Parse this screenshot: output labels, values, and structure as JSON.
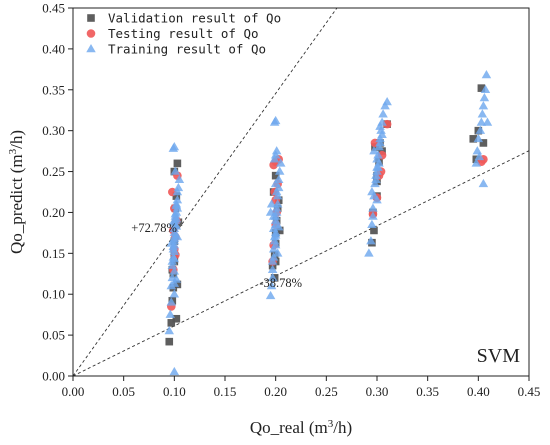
{
  "chart_data": {
    "type": "scatter",
    "xlabel": "Qo_real (m³/h)",
    "ylabel": "Qo_predict (m³/h)",
    "xlim": [
      0,
      0.45
    ],
    "ylim": [
      0,
      0.45
    ],
    "x_ticks": [
      "0.00",
      "0.05",
      "0.10",
      "0.15",
      "0.20",
      "0.25",
      "0.30",
      "0.35",
      "0.40",
      "0.45"
    ],
    "y_ticks": [
      "0.00",
      "0.05",
      "0.10",
      "0.15",
      "0.20",
      "0.25",
      "0.30",
      "0.35",
      "0.40",
      "0.45"
    ],
    "grid": false,
    "legend_position": "top-left",
    "annotations": [
      {
        "text": "+72.78%",
        "x": 0.08,
        "y": 0.176,
        "slope": 1.7278
      },
      {
        "text": "-38.78%",
        "x": 0.205,
        "y": 0.109,
        "slope": 0.6122
      }
    ],
    "model_label": "SVM",
    "series": [
      {
        "name": "Validation result of Qo",
        "marker": "square",
        "color": "#555555",
        "x": [
          0.095,
          0.097,
          0.098,
          0.099,
          0.1,
          0.1,
          0.101,
          0.101,
          0.102,
          0.103,
          0.1,
          0.099,
          0.103,
          0.098,
          0.104,
          0.1,
          0.102,
          0.197,
          0.199,
          0.2,
          0.2,
          0.201,
          0.202,
          0.203,
          0.198,
          0.2,
          0.204,
          0.2,
          0.199,
          0.295,
          0.297,
          0.3,
          0.3,
          0.302,
          0.305,
          0.298,
          0.303,
          0.31,
          0.296,
          0.3,
          0.395,
          0.4,
          0.403,
          0.405,
          0.398
        ],
        "y": [
          0.042,
          0.065,
          0.092,
          0.125,
          0.14,
          0.165,
          0.185,
          0.205,
          0.22,
          0.26,
          0.25,
          0.108,
          0.112,
          0.13,
          0.188,
          0.148,
          0.07,
          0.135,
          0.148,
          0.162,
          0.175,
          0.19,
          0.205,
          0.215,
          0.225,
          0.14,
          0.178,
          0.245,
          0.12,
          0.163,
          0.178,
          0.22,
          0.245,
          0.262,
          0.275,
          0.28,
          0.285,
          0.308,
          0.2,
          0.238,
          0.29,
          0.3,
          0.352,
          0.285,
          0.265
        ],
        "labels_x": [],
        "labels_y": []
      },
      {
        "name": "Testing result of Qo",
        "marker": "circle",
        "color": "#f05a5a",
        "x": [
          0.097,
          0.099,
          0.1,
          0.101,
          0.102,
          0.1,
          0.098,
          0.103,
          0.101,
          0.099,
          0.197,
          0.198,
          0.2,
          0.201,
          0.2,
          0.199,
          0.202,
          0.198,
          0.2,
          0.203,
          0.296,
          0.3,
          0.302,
          0.305,
          0.31,
          0.298,
          0.304,
          0.405,
          0.403
        ],
        "y": [
          0.085,
          0.13,
          0.155,
          0.17,
          0.19,
          0.205,
          0.225,
          0.245,
          0.148,
          0.178,
          0.14,
          0.16,
          0.185,
          0.2,
          0.215,
          0.225,
          0.235,
          0.258,
          0.262,
          0.265,
          0.198,
          0.218,
          0.245,
          0.27,
          0.308,
          0.285,
          0.25,
          0.265,
          0.262
        ]
      },
      {
        "name": "Training result of Qo",
        "marker": "triangle",
        "color": "#6fa8ee",
        "x": [
          0.095,
          0.096,
          0.097,
          0.097,
          0.098,
          0.098,
          0.099,
          0.099,
          0.1,
          0.1,
          0.1,
          0.1,
          0.101,
          0.101,
          0.101,
          0.102,
          0.102,
          0.103,
          0.103,
          0.104,
          0.105,
          0.1,
          0.099,
          0.101,
          0.098,
          0.102,
          0.1,
          0.1,
          0.101,
          0.099,
          0.102,
          0.1,
          0.103,
          0.097,
          0.1,
          0.101,
          0.099,
          0.1,
          0.102,
          0.1,
          0.102,
          0.103,
          0.1,
          0.195,
          0.196,
          0.197,
          0.197,
          0.198,
          0.198,
          0.199,
          0.199,
          0.2,
          0.2,
          0.2,
          0.2,
          0.201,
          0.201,
          0.202,
          0.202,
          0.203,
          0.203,
          0.204,
          0.205,
          0.199,
          0.2,
          0.201,
          0.198,
          0.2,
          0.202,
          0.197,
          0.2,
          0.199,
          0.201,
          0.2,
          0.198,
          0.203,
          0.2,
          0.195,
          0.196,
          0.292,
          0.294,
          0.295,
          0.296,
          0.297,
          0.298,
          0.299,
          0.3,
          0.3,
          0.301,
          0.302,
          0.303,
          0.304,
          0.305,
          0.306,
          0.308,
          0.31,
          0.3,
          0.302,
          0.297,
          0.303,
          0.3,
          0.299,
          0.305,
          0.295,
          0.301,
          0.303,
          0.296,
          0.398,
          0.399,
          0.4,
          0.402,
          0.403,
          0.404,
          0.405,
          0.406,
          0.407,
          0.408,
          0.405,
          0.401,
          0.409
        ],
        "y": [
          0.055,
          0.075,
          0.09,
          0.11,
          0.12,
          0.135,
          0.145,
          0.155,
          0.16,
          0.165,
          0.175,
          0.18,
          0.185,
          0.19,
          0.195,
          0.2,
          0.21,
          0.215,
          0.225,
          0.23,
          0.24,
          0.28,
          0.278,
          0.25,
          0.14,
          0.118,
          0.1,
          0.128,
          0.172,
          0.188,
          0.208,
          0.005,
          0.17,
          0.162,
          0.152,
          0.198,
          0.158,
          0.143,
          0.183,
          0.113,
          0.192,
          0.205,
          0.168,
          0.098,
          0.11,
          0.12,
          0.13,
          0.145,
          0.155,
          0.165,
          0.17,
          0.175,
          0.185,
          0.19,
          0.195,
          0.2,
          0.205,
          0.21,
          0.22,
          0.23,
          0.24,
          0.25,
          0.26,
          0.265,
          0.27,
          0.275,
          0.18,
          0.16,
          0.15,
          0.14,
          0.312,
          0.31,
          0.225,
          0.235,
          0.195,
          0.182,
          0.172,
          0.2,
          0.21,
          0.15,
          0.165,
          0.185,
          0.205,
          0.22,
          0.235,
          0.245,
          0.255,
          0.265,
          0.27,
          0.28,
          0.29,
          0.3,
          0.31,
          0.32,
          0.33,
          0.335,
          0.25,
          0.26,
          0.275,
          0.285,
          0.215,
          0.24,
          0.295,
          0.225,
          0.255,
          0.305,
          0.195,
          0.26,
          0.275,
          0.29,
          0.3,
          0.31,
          0.32,
          0.33,
          0.34,
          0.35,
          0.368,
          0.235,
          0.268,
          0.31
        ]
      }
    ]
  }
}
